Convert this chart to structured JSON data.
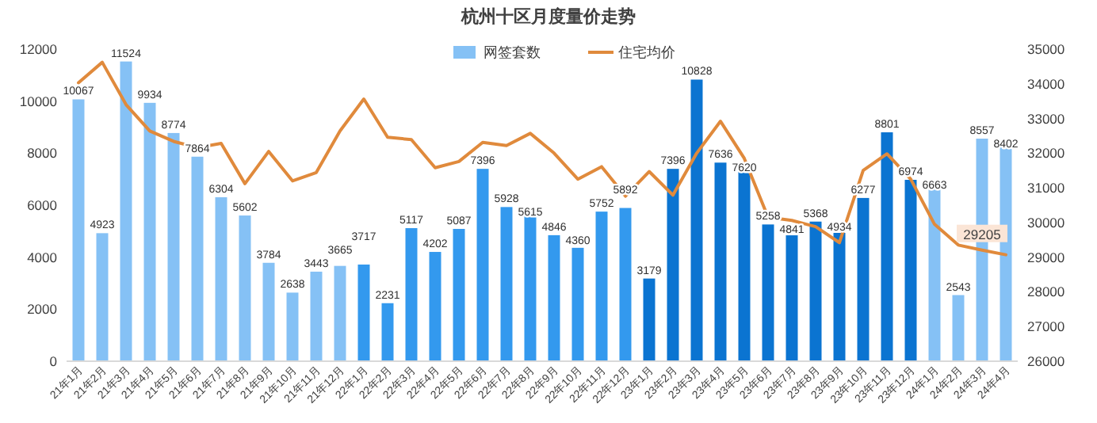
{
  "chart_data": {
    "type": "bar",
    "title": "杭州十区月度量价走势",
    "categories": [
      "21年1月",
      "21年2月",
      "21年3月",
      "21年4月",
      "21年5月",
      "21年6月",
      "21年7月",
      "21年8月",
      "21年9月",
      "21年10月",
      "21年11月",
      "21年12月",
      "22年1月",
      "22年2月",
      "22年3月",
      "22年4月",
      "22年5月",
      "22年6月",
      "22年7月",
      "22年8月",
      "22年9月",
      "22年10月",
      "22年11月",
      "22年12月",
      "23年1月",
      "23年2月",
      "23年3月",
      "23年4月",
      "23年5月",
      "23年6月",
      "23年7月",
      "23年8月",
      "23年9月",
      "23年10月",
      "23年11月",
      "23年12月",
      "24年1月",
      "24年2月",
      "24年3月",
      "24年4月"
    ],
    "series": [
      {
        "name": "网签套数",
        "color": "#85c1f5",
        "colors": [
          "#85c1f5",
          "#85c1f5",
          "#85c1f5",
          "#85c1f5",
          "#85c1f5",
          "#85c1f5",
          "#85c1f5",
          "#85c1f5",
          "#85c1f5",
          "#85c1f5",
          "#85c1f5",
          "#85c1f5",
          "#3399ee",
          "#3399ee",
          "#3399ee",
          "#3399ee",
          "#3399ee",
          "#3399ee",
          "#3399ee",
          "#3399ee",
          "#3399ee",
          "#3399ee",
          "#3399ee",
          "#3399ee",
          "#0b74d1",
          "#0b74d1",
          "#0b74d1",
          "#0b74d1",
          "#0b74d1",
          "#0b74d1",
          "#0b74d1",
          "#0b74d1",
          "#0b74d1",
          "#0b74d1",
          "#0b74d1",
          "#0b74d1",
          "#85c1f5",
          "#85c1f5",
          "#85c1f5",
          "#85c1f5"
        ],
        "data_labels": true,
        "values": [
          10067,
          4923,
          11524,
          9934,
          8774,
          7864,
          6304,
          5602,
          3784,
          2638,
          3443,
          3665,
          3717,
          2231,
          5117,
          4202,
          5087,
          7396,
          5928,
          5615,
          4846,
          4360,
          5752,
          5892,
          3179,
          7396,
          10828,
          7636,
          7620,
          5258,
          4841,
          5368,
          4934,
          6277,
          8801,
          6974,
          6663,
          2543,
          8557,
          8402
        ]
      },
      {
        "name": "住宅均价",
        "type": "line",
        "axis": "y2",
        "color": "#e08a3c",
        "marker": "none",
        "values": [
          34030,
          34620,
          33400,
          32640,
          32340,
          32160,
          32280,
          31120,
          32050,
          31200,
          31440,
          32640,
          33560,
          32460,
          32390,
          31580,
          31760,
          32310,
          32220,
          32570,
          32000,
          31250,
          31610,
          30760,
          31470,
          30790,
          32000,
          32920,
          31850,
          30150,
          30060,
          29880,
          29420,
          31500,
          31980,
          31250,
          29950,
          29350,
          29205,
          29070
        ],
        "value_labels": [
          null,
          null,
          null,
          null,
          null,
          null,
          null,
          null,
          null,
          null,
          null,
          null,
          null,
          null,
          null,
          null,
          null,
          null,
          null,
          null,
          null,
          null,
          null,
          null,
          null,
          null,
          null,
          null,
          null,
          null,
          null,
          null,
          null,
          null,
          null,
          null,
          null,
          null,
          "29205",
          null
        ]
      }
    ],
    "ylim": [
      0,
      12000
    ],
    "yticks": [
      0,
      2000,
      4000,
      6000,
      8000,
      10000,
      12000
    ],
    "y2lim": [
      26000,
      35000
    ],
    "y2ticks": [
      26000,
      27000,
      28000,
      29000,
      30000,
      31000,
      32000,
      33000,
      34000,
      35000
    ],
    "grid": false,
    "legend": "top"
  }
}
